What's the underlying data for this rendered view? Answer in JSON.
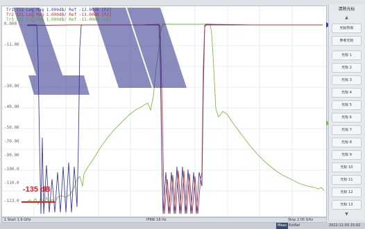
{
  "header": {
    "traces": [
      {
        "text": "Tr1 S11 Log Mag 1.000dB/ Ref -13.00dB [F2]",
        "color": "#3c3ca0"
      },
      {
        "text": "Tr2 S21 Log Mag 1.000dB/ Ref -13.00dB [F2]",
        "color": "#c03030"
      },
      {
        "text": "Tr3 S31 Log Mag 1.000dB/ Ref -13.00dB [F2]",
        "color": "#60a030"
      }
    ]
  },
  "y_axis": {
    "labels": [
      "0.000",
      "-11.00",
      "-30.00",
      "-40.00",
      "-50.00",
      "-70.00",
      "-90.00",
      "-100.0",
      "-110.0",
      "-123.0"
    ]
  },
  "x_bar": {
    "start": "1  Start 1.9 GHz",
    "center": "IFBW 18 Hz",
    "stop": "Stop 2.05 GHz"
  },
  "side_panel": {
    "title": "清除光标",
    "buttons": [
      "光标所有",
      "参考光标",
      "光标 1",
      "光标 2",
      "光标 3",
      "光标 4",
      "光标 5",
      "光标 6",
      "光标 7",
      "光标 8",
      "光标 9",
      "光标 10",
      "光标 11",
      "光标 12",
      "光标 13"
    ]
  },
  "status_bar": {
    "meas": "Meas",
    "state": "ExtRef",
    "datetime": "2022-11-03 15:02"
  },
  "annotation": {
    "text": "-135 dB"
  },
  "colors": {
    "s11": "#3c3ca0",
    "s21": "#c03030",
    "s31": "#7fba48",
    "accent": "#e02020",
    "watermark": "#2b2f8a"
  }
}
